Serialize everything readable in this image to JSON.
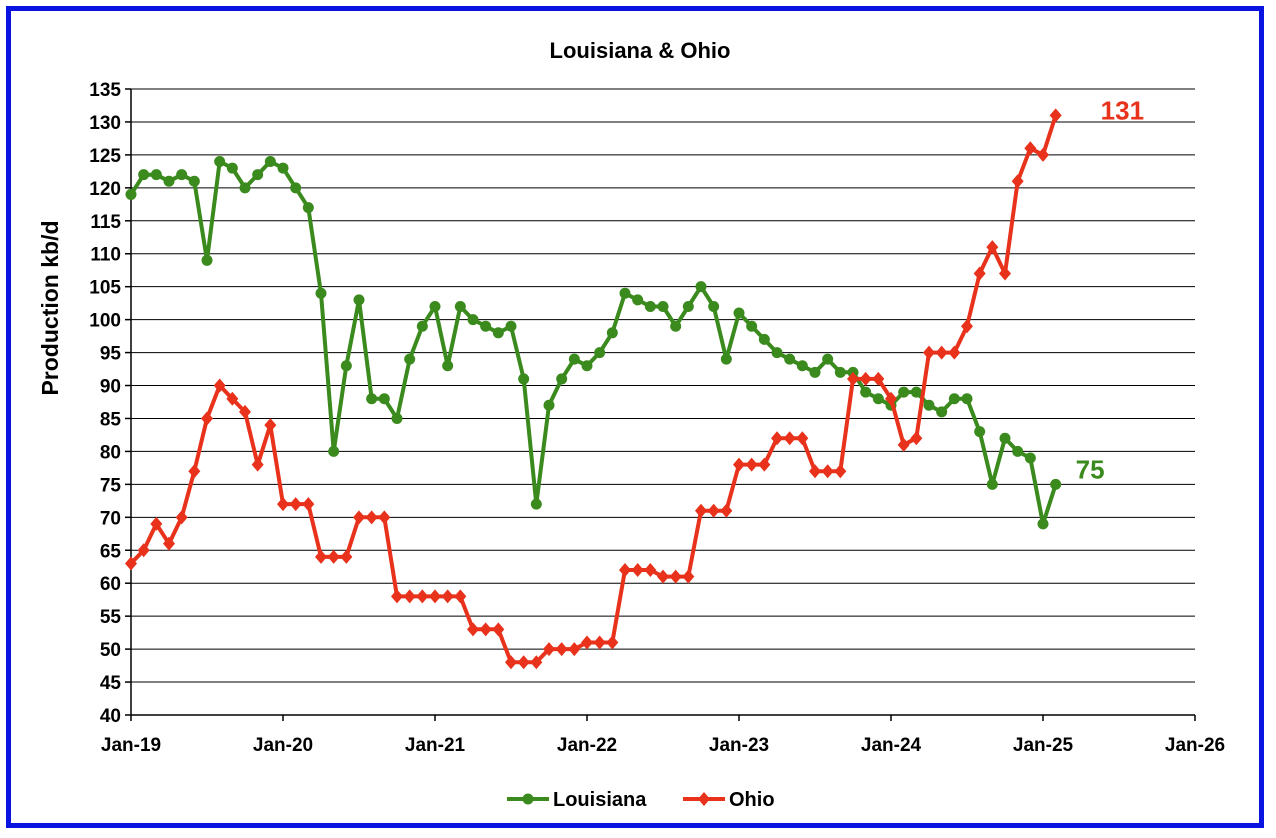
{
  "chart_data": {
    "type": "line",
    "title": "Louisiana & Ohio",
    "xlabel": "",
    "ylabel": "Production kb/d",
    "ylim": [
      40,
      135
    ],
    "ystep": 5,
    "x_ticks": [
      "Jan-19",
      "Jan-20",
      "Jan-21",
      "Jan-22",
      "Jan-23",
      "Jan-24",
      "Jan-25",
      "Jan-26"
    ],
    "x_start": "Jan-19",
    "grid": "horizontal",
    "legend_position": "bottom",
    "series": [
      {
        "name": "Louisiana",
        "color": "#3a8a1e",
        "marker": "circle",
        "end_label": "75",
        "values": [
          119,
          122,
          122,
          121,
          122,
          121,
          109,
          124,
          123,
          120,
          122,
          124,
          123,
          120,
          117,
          104,
          80,
          93,
          103,
          88,
          88,
          85,
          94,
          99,
          102,
          93,
          102,
          100,
          99,
          98,
          99,
          91,
          72,
          87,
          91,
          94,
          93,
          95,
          98,
          104,
          103,
          102,
          102,
          99,
          102,
          105,
          102,
          94,
          101,
          99,
          97,
          95,
          94,
          93,
          92,
          94,
          92,
          92,
          89,
          88,
          87,
          89,
          89,
          87,
          86,
          88,
          88,
          83,
          75,
          82,
          80,
          79,
          69,
          75
        ]
      },
      {
        "name": "Ohio",
        "color": "#e8321c",
        "marker": "diamond",
        "end_label": "131",
        "values": [
          63,
          65,
          69,
          66,
          70,
          77,
          85,
          90,
          88,
          86,
          78,
          84,
          72,
          72,
          72,
          64,
          64,
          64,
          70,
          70,
          70,
          58,
          58,
          58,
          58,
          58,
          58,
          53,
          53,
          53,
          48,
          48,
          48,
          50,
          50,
          50,
          51,
          51,
          51,
          62,
          62,
          62,
          61,
          61,
          61,
          71,
          71,
          71,
          78,
          78,
          78,
          82,
          82,
          82,
          77,
          77,
          77,
          91,
          91,
          91,
          88,
          81,
          82,
          95,
          95,
          95,
          99,
          107,
          111,
          107,
          121,
          126,
          125,
          131
        ]
      }
    ]
  }
}
